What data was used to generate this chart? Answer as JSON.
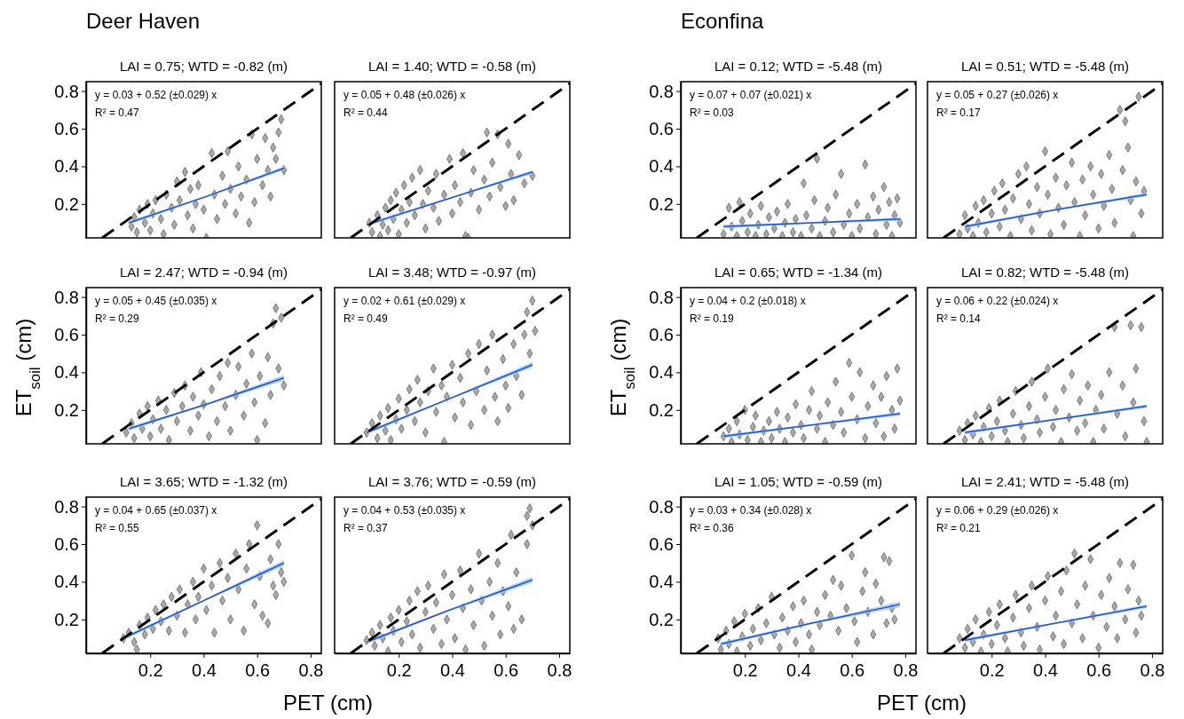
{
  "chart_data": [
    {
      "type": "scatter",
      "title": "LAI = 0.75; WTD = -0.82 (m)",
      "annotations": [
        "y = 0.03 + 0.52 (±0.029) x",
        "R² = 0.47",
        "Deer Haven"
      ],
      "xlim": [
        -0.04,
        0.84
      ],
      "ylim": [
        0.02,
        0.85
      ],
      "yticks": [
        0.2,
        0.4,
        0.6,
        0.8
      ],
      "tick_labels": "y",
      "series": [
        {
          "type": "scatter",
          "color": "#a9a9a9",
          "marker": "diamond",
          "x": [
            0.13,
            0.14,
            0.15,
            0.16,
            0.18,
            0.19,
            0.2,
            0.21,
            0.22,
            0.24,
            0.25,
            0.26,
            0.28,
            0.29,
            0.3,
            0.31,
            0.33,
            0.34,
            0.35,
            0.36,
            0.37,
            0.38,
            0.4,
            0.41,
            0.43,
            0.44,
            0.45,
            0.47,
            0.48,
            0.49,
            0.5,
            0.52,
            0.53,
            0.54,
            0.56,
            0.57,
            0.58,
            0.59,
            0.6,
            0.62,
            0.63,
            0.64,
            0.65,
            0.66,
            0.67,
            0.68,
            0.69,
            0.7
          ],
          "values": [
            0.08,
            0.13,
            0.05,
            0.17,
            0.1,
            0.2,
            0.06,
            0.15,
            0.22,
            0.12,
            0.04,
            0.25,
            0.18,
            0.09,
            0.32,
            0.22,
            0.37,
            0.14,
            0.28,
            0.07,
            0.2,
            0.3,
            0.17,
            0.02,
            0.47,
            0.25,
            0.12,
            0.35,
            0.2,
            0.48,
            0.28,
            0.15,
            0.4,
            0.24,
            0.33,
            0.1,
            0.57,
            0.21,
            0.44,
            0.3,
            0.55,
            0.38,
            0.24,
            0.5,
            0.44,
            0.58,
            0.65,
            0.38
          ]
        },
        {
          "type": "line",
          "color": "#1f4fd8",
          "x": [
            0.12,
            0.41,
            0.7
          ],
          "values": [
            0.1,
            0.24,
            0.39
          ],
          "lower": [
            0.09,
            0.236,
            0.38
          ],
          "upper": [
            0.11,
            0.244,
            0.4
          ]
        },
        {
          "type": "line",
          "color": "#000000",
          "line_style": "dashed",
          "x": [
            0.02,
            0.84
          ],
          "values": [
            0.02,
            0.84
          ]
        }
      ]
    },
    {
      "type": "scatter",
      "title": "LAI = 1.40; WTD = -0.58 (m)",
      "annotations": [
        "y = 0.05 + 0.48 (±0.026) x",
        "R² = 0.44"
      ],
      "xlim": [
        -0.04,
        0.84
      ],
      "ylim": [
        0.02,
        0.85
      ],
      "tick_labels": false,
      "series": [
        {
          "type": "scatter",
          "color": "#a9a9a9",
          "marker": "diamond",
          "x": [
            0.09,
            0.1,
            0.12,
            0.13,
            0.14,
            0.15,
            0.16,
            0.17,
            0.18,
            0.19,
            0.2,
            0.21,
            0.22,
            0.23,
            0.24,
            0.25,
            0.26,
            0.28,
            0.29,
            0.3,
            0.31,
            0.33,
            0.34,
            0.35,
            0.37,
            0.39,
            0.4,
            0.41,
            0.43,
            0.44,
            0.45,
            0.46,
            0.47,
            0.48,
            0.5,
            0.52,
            0.53,
            0.54,
            0.55,
            0.57,
            0.58,
            0.6,
            0.61,
            0.62,
            0.63,
            0.65,
            0.67,
            0.7
          ],
          "values": [
            0.1,
            0.05,
            0.14,
            0.03,
            0.09,
            0.18,
            0.06,
            0.22,
            0.12,
            0.26,
            0.04,
            0.17,
            0.3,
            0.1,
            0.21,
            0.34,
            0.14,
            0.38,
            0.2,
            0.07,
            0.27,
            0.18,
            0.36,
            0.11,
            0.25,
            0.44,
            0.15,
            0.3,
            0.21,
            0.47,
            0.03,
            0.02,
            0.26,
            0.38,
            0.17,
            0.33,
            0.58,
            0.24,
            0.42,
            0.57,
            0.29,
            0.19,
            0.52,
            0.36,
            0.22,
            0.46,
            0.31,
            0.35
          ]
        },
        {
          "type": "line",
          "color": "#1f4fd8",
          "x": [
            0.08,
            0.39,
            0.7
          ],
          "values": [
            0.09,
            0.23,
            0.37
          ],
          "lower": [
            0.08,
            0.226,
            0.36
          ],
          "upper": [
            0.1,
            0.234,
            0.38
          ]
        },
        {
          "type": "line",
          "color": "#000000",
          "line_style": "dashed",
          "x": [
            0.02,
            0.84
          ],
          "values": [
            0.02,
            0.84
          ]
        }
      ]
    },
    {
      "type": "scatter",
      "title": "LAI = 0.12; WTD = -5.48 (m)",
      "annotations": [
        "y = 0.07 + 0.07 (±0.021) x",
        "R² = 0.03",
        "Econfina"
      ],
      "xlim": [
        -0.04,
        0.84
      ],
      "ylim": [
        0.02,
        0.85
      ],
      "yticks": [
        0.2,
        0.4,
        0.6,
        0.8
      ],
      "tick_labels": "y",
      "series": [
        {
          "type": "scatter",
          "color": "#a9a9a9",
          "marker": "diamond",
          "x": [
            0.12,
            0.14,
            0.15,
            0.17,
            0.18,
            0.19,
            0.21,
            0.22,
            0.24,
            0.25,
            0.26,
            0.28,
            0.29,
            0.31,
            0.32,
            0.34,
            0.35,
            0.36,
            0.38,
            0.39,
            0.41,
            0.42,
            0.43,
            0.45,
            0.46,
            0.47,
            0.48,
            0.5,
            0.51,
            0.53,
            0.54,
            0.56,
            0.57,
            0.59,
            0.6,
            0.62,
            0.63,
            0.65,
            0.66,
            0.68,
            0.69,
            0.7,
            0.72,
            0.73,
            0.74,
            0.75,
            0.76,
            0.77,
            0.78
          ],
          "values": [
            0.04,
            0.18,
            0.08,
            0.03,
            0.21,
            0.11,
            0.05,
            0.15,
            0.03,
            0.09,
            0.19,
            0.04,
            0.13,
            0.07,
            0.16,
            0.03,
            0.1,
            0.2,
            0.05,
            0.12,
            0.03,
            0.31,
            0.14,
            0.07,
            0.22,
            0.44,
            0.03,
            0.11,
            0.18,
            0.05,
            0.25,
            0.36,
            0.09,
            0.15,
            0.03,
            0.2,
            0.07,
            0.41,
            0.13,
            0.24,
            0.04,
            0.17,
            0.29,
            0.09,
            0.21,
            0.03,
            0.14,
            0.23,
            0.1
          ]
        },
        {
          "type": "line",
          "color": "#1f4fd8",
          "x": [
            0.12,
            0.45,
            0.78
          ],
          "values": [
            0.08,
            0.1,
            0.12
          ],
          "lower": [
            0.07,
            0.096,
            0.11
          ],
          "upper": [
            0.09,
            0.104,
            0.13
          ]
        },
        {
          "type": "line",
          "color": "#000000",
          "line_style": "dashed",
          "x": [
            0.02,
            0.84
          ],
          "values": [
            0.02,
            0.84
          ]
        }
      ]
    },
    {
      "type": "scatter",
      "title": "LAI = 0.51; WTD = -5.48 (m)",
      "annotations": [
        "y = 0.05 + 0.27 (±0.026) x",
        "R² = 0.17"
      ],
      "xlim": [
        -0.04,
        0.84
      ],
      "ylim": [
        0.02,
        0.85
      ],
      "tick_labels": false,
      "series": [
        {
          "type": "scatter",
          "color": "#a9a9a9",
          "marker": "diamond",
          "x": [
            0.08,
            0.1,
            0.11,
            0.13,
            0.14,
            0.15,
            0.17,
            0.18,
            0.2,
            0.21,
            0.23,
            0.24,
            0.25,
            0.27,
            0.28,
            0.3,
            0.31,
            0.33,
            0.34,
            0.35,
            0.37,
            0.38,
            0.4,
            0.41,
            0.42,
            0.44,
            0.45,
            0.47,
            0.48,
            0.5,
            0.51,
            0.53,
            0.54,
            0.55,
            0.57,
            0.58,
            0.6,
            0.61,
            0.62,
            0.64,
            0.65,
            0.66,
            0.68,
            0.69,
            0.7,
            0.71,
            0.72,
            0.73,
            0.74,
            0.75,
            0.76,
            0.77
          ],
          "values": [
            0.04,
            0.14,
            0.07,
            0.03,
            0.19,
            0.1,
            0.22,
            0.05,
            0.15,
            0.27,
            0.08,
            0.31,
            0.17,
            0.03,
            0.23,
            0.36,
            0.12,
            0.4,
            0.2,
            0.06,
            0.29,
            0.15,
            0.48,
            0.25,
            0.04,
            0.34,
            0.18,
            0.09,
            0.3,
            0.42,
            0.21,
            0.03,
            0.33,
            0.14,
            0.4,
            0.25,
            0.07,
            0.36,
            0.19,
            0.46,
            0.28,
            0.1,
            0.7,
            0.38,
            0.64,
            0.5,
            0.22,
            0.03,
            0.32,
            0.77,
            0.15,
            0.27
          ]
        },
        {
          "type": "line",
          "color": "#1f4fd8",
          "x": [
            0.1,
            0.44,
            0.78
          ],
          "values": [
            0.08,
            0.17,
            0.25
          ],
          "lower": [
            0.07,
            0.166,
            0.24
          ],
          "upper": [
            0.09,
            0.174,
            0.26
          ]
        },
        {
          "type": "line",
          "color": "#000000",
          "line_style": "dashed",
          "x": [
            0.02,
            0.84
          ],
          "values": [
            0.02,
            0.84
          ]
        }
      ]
    },
    {
      "type": "scatter",
      "title": "LAI = 2.47; WTD = -0.94 (m)",
      "ylabel": "ET$_{soil}$ (cm)",
      "annotations": [
        "y = 0.05 + 0.45 (±0.035) x",
        "R² = 0.29"
      ],
      "xlim": [
        -0.04,
        0.84
      ],
      "ylim": [
        0.02,
        0.85
      ],
      "yticks": [
        0.2,
        0.4,
        0.6,
        0.8
      ],
      "tick_labels": "y",
      "series": [
        {
          "type": "scatter",
          "color": "#a9a9a9",
          "marker": "diamond",
          "x": [
            0.11,
            0.13,
            0.14,
            0.16,
            0.17,
            0.19,
            0.2,
            0.21,
            0.23,
            0.24,
            0.26,
            0.27,
            0.29,
            0.3,
            0.32,
            0.33,
            0.35,
            0.36,
            0.38,
            0.39,
            0.4,
            0.42,
            0.43,
            0.45,
            0.46,
            0.48,
            0.49,
            0.5,
            0.52,
            0.53,
            0.55,
            0.56,
            0.58,
            0.59,
            0.6,
            0.61,
            0.63,
            0.64,
            0.65,
            0.66,
            0.67,
            0.68,
            0.69,
            0.7
          ],
          "values": [
            0.08,
            0.13,
            0.05,
            0.18,
            0.1,
            0.22,
            0.06,
            0.15,
            0.25,
            0.1,
            0.2,
            0.04,
            0.29,
            0.14,
            0.22,
            0.33,
            0.09,
            0.27,
            0.17,
            0.4,
            0.23,
            0.06,
            0.31,
            0.14,
            0.38,
            0.22,
            0.45,
            0.09,
            0.28,
            0.43,
            0.17,
            0.34,
            0.5,
            0.24,
            0.04,
            0.38,
            0.13,
            0.48,
            0.28,
            0.66,
            0.74,
            0.42,
            0.69,
            0.33
          ]
        },
        {
          "type": "line",
          "color": "#1f4fd8",
          "x": [
            0.12,
            0.41,
            0.7
          ],
          "values": [
            0.1,
            0.23,
            0.37
          ],
          "lower": [
            0.09,
            0.225,
            0.355
          ],
          "upper": [
            0.11,
            0.235,
            0.385
          ]
        },
        {
          "type": "line",
          "color": "#000000",
          "line_style": "dashed",
          "x": [
            0.02,
            0.84
          ],
          "values": [
            0.02,
            0.84
          ]
        }
      ]
    },
    {
      "type": "scatter",
      "title": "LAI = 3.48; WTD = -0.97 (m)",
      "annotations": [
        "y = 0.02 + 0.61 (±0.029) x",
        "R² = 0.49"
      ],
      "xlim": [
        -0.04,
        0.84
      ],
      "ylim": [
        0.02,
        0.85
      ],
      "tick_labels": false,
      "series": [
        {
          "type": "scatter",
          "color": "#a9a9a9",
          "marker": "diamond",
          "x": [
            0.08,
            0.1,
            0.12,
            0.13,
            0.15,
            0.16,
            0.17,
            0.19,
            0.2,
            0.21,
            0.23,
            0.24,
            0.26,
            0.27,
            0.28,
            0.3,
            0.31,
            0.33,
            0.34,
            0.36,
            0.37,
            0.38,
            0.4,
            0.41,
            0.43,
            0.44,
            0.46,
            0.47,
            0.49,
            0.5,
            0.52,
            0.53,
            0.55,
            0.56,
            0.57,
            0.59,
            0.6,
            0.61,
            0.63,
            0.64,
            0.66,
            0.67,
            0.68,
            0.69,
            0.7,
            0.71
          ],
          "values": [
            0.08,
            0.13,
            0.05,
            0.17,
            0.09,
            0.21,
            0.04,
            0.15,
            0.26,
            0.1,
            0.2,
            0.31,
            0.14,
            0.36,
            0.24,
            0.08,
            0.3,
            0.42,
            0.19,
            0.33,
            0.03,
            0.27,
            0.44,
            0.16,
            0.37,
            0.24,
            0.5,
            0.12,
            0.3,
            0.55,
            0.2,
            0.41,
            0.6,
            0.27,
            0.14,
            0.47,
            0.33,
            0.21,
            0.55,
            0.38,
            0.28,
            0.6,
            0.72,
            0.5,
            0.78,
            0.62
          ]
        },
        {
          "type": "line",
          "color": "#1f4fd8",
          "x": [
            0.08,
            0.39,
            0.7
          ],
          "values": [
            0.08,
            0.26,
            0.44
          ],
          "lower": [
            0.07,
            0.255,
            0.425
          ],
          "upper": [
            0.09,
            0.265,
            0.455
          ]
        },
        {
          "type": "line",
          "color": "#000000",
          "line_style": "dashed",
          "x": [
            0.02,
            0.84
          ],
          "values": [
            0.02,
            0.84
          ]
        }
      ]
    },
    {
      "type": "scatter",
      "title": "LAI = 0.65; WTD = -1.34 (m)",
      "ylabel": "ET$_{soil}$ (cm)",
      "annotations": [
        "y = 0.04 + 0.2 (±0.018) x",
        "R² = 0.19"
      ],
      "xlim": [
        -0.04,
        0.84
      ],
      "ylim": [
        0.02,
        0.85
      ],
      "yticks": [
        0.2,
        0.4,
        0.6,
        0.8
      ],
      "tick_labels": "y",
      "series": [
        {
          "type": "scatter",
          "color": "#a9a9a9",
          "marker": "diamond",
          "x": [
            0.12,
            0.14,
            0.15,
            0.17,
            0.18,
            0.2,
            0.21,
            0.23,
            0.24,
            0.26,
            0.27,
            0.29,
            0.3,
            0.32,
            0.33,
            0.35,
            0.36,
            0.38,
            0.39,
            0.41,
            0.42,
            0.44,
            0.45,
            0.47,
            0.48,
            0.5,
            0.51,
            0.53,
            0.54,
            0.56,
            0.57,
            0.59,
            0.6,
            0.62,
            0.63,
            0.65,
            0.66,
            0.68,
            0.69,
            0.71,
            0.72,
            0.73,
            0.75,
            0.76,
            0.77,
            0.78
          ],
          "values": [
            0.06,
            0.1,
            0.03,
            0.14,
            0.07,
            0.2,
            0.04,
            0.11,
            0.17,
            0.03,
            0.09,
            0.14,
            0.05,
            0.19,
            0.1,
            0.03,
            0.16,
            0.08,
            0.23,
            0.12,
            0.05,
            0.2,
            0.3,
            0.1,
            0.17,
            0.03,
            0.24,
            0.12,
            0.35,
            0.19,
            0.08,
            0.45,
            0.27,
            0.15,
            0.4,
            0.05,
            0.22,
            0.33,
            0.13,
            0.27,
            0.06,
            0.38,
            0.2,
            0.1,
            0.42,
            0.25
          ]
        },
        {
          "type": "line",
          "color": "#1f4fd8",
          "x": [
            0.12,
            0.45,
            0.78
          ],
          "values": [
            0.06,
            0.12,
            0.18
          ],
          "lower": [
            0.05,
            0.116,
            0.17
          ],
          "upper": [
            0.07,
            0.124,
            0.19
          ]
        },
        {
          "type": "line",
          "color": "#000000",
          "line_style": "dashed",
          "x": [
            0.02,
            0.84
          ],
          "values": [
            0.02,
            0.84
          ]
        }
      ]
    },
    {
      "type": "scatter",
      "title": "LAI = 0.82; WTD = -5.48 (m)",
      "annotations": [
        "y = 0.06 + 0.22 (±0.024) x",
        "R² = 0.14"
      ],
      "xlim": [
        -0.04,
        0.84
      ],
      "ylim": [
        0.02,
        0.85
      ],
      "tick_labels": false,
      "series": [
        {
          "type": "scatter",
          "color": "#a9a9a9",
          "marker": "diamond",
          "x": [
            0.08,
            0.1,
            0.11,
            0.13,
            0.14,
            0.16,
            0.17,
            0.19,
            0.2,
            0.22,
            0.23,
            0.25,
            0.26,
            0.28,
            0.29,
            0.31,
            0.32,
            0.34,
            0.35,
            0.37,
            0.38,
            0.4,
            0.41,
            0.43,
            0.44,
            0.46,
            0.47,
            0.49,
            0.5,
            0.52,
            0.53,
            0.55,
            0.56,
            0.58,
            0.59,
            0.61,
            0.62,
            0.64,
            0.66,
            0.67,
            0.69,
            0.7,
            0.72,
            0.73,
            0.74,
            0.76,
            0.77,
            0.78
          ],
          "values": [
            0.09,
            0.04,
            0.13,
            0.07,
            0.17,
            0.03,
            0.11,
            0.21,
            0.06,
            0.14,
            0.25,
            0.09,
            0.03,
            0.18,
            0.3,
            0.12,
            0.05,
            0.22,
            0.35,
            0.15,
            0.08,
            0.27,
            0.42,
            0.11,
            0.2,
            0.03,
            0.31,
            0.16,
            0.39,
            0.09,
            0.25,
            0.13,
            0.33,
            0.03,
            0.2,
            0.28,
            0.1,
            0.4,
            0.64,
            0.18,
            0.33,
            0.06,
            0.65,
            0.24,
            0.42,
            0.64,
            0.14,
            0.03
          ]
        },
        {
          "type": "line",
          "color": "#1f4fd8",
          "x": [
            0.1,
            0.44,
            0.78
          ],
          "values": [
            0.08,
            0.15,
            0.22
          ],
          "lower": [
            0.07,
            0.146,
            0.21
          ],
          "upper": [
            0.09,
            0.154,
            0.23
          ]
        },
        {
          "type": "line",
          "color": "#000000",
          "line_style": "dashed",
          "x": [
            0.02,
            0.84
          ],
          "values": [
            0.02,
            0.84
          ]
        }
      ]
    },
    {
      "type": "scatter",
      "title": "LAI = 3.65; WTD = -1.32 (m)",
      "xlabel": "PET (cm)",
      "annotations": [
        "y = 0.04 + 0.65 (±0.037) x",
        "R² = 0.55"
      ],
      "xlim": [
        -0.04,
        0.84
      ],
      "ylim": [
        0.02,
        0.85
      ],
      "xticks": [
        0.2,
        0.4,
        0.6,
        0.8
      ],
      "yticks": [
        0.2,
        0.4,
        0.6,
        0.8
      ],
      "series": [
        {
          "type": "scatter",
          "color": "#a9a9a9",
          "marker": "diamond",
          "x": [
            0.1,
            0.12,
            0.14,
            0.15,
            0.16,
            0.18,
            0.19,
            0.21,
            0.22,
            0.24,
            0.25,
            0.27,
            0.28,
            0.3,
            0.31,
            0.33,
            0.34,
            0.36,
            0.37,
            0.38,
            0.4,
            0.41,
            0.43,
            0.44,
            0.46,
            0.47,
            0.49,
            0.5,
            0.52,
            0.53,
            0.55,
            0.56,
            0.57,
            0.59,
            0.6,
            0.61,
            0.62,
            0.64,
            0.65,
            0.66,
            0.67,
            0.68,
            0.69,
            0.7
          ],
          "values": [
            0.1,
            0.13,
            0.08,
            0.04,
            0.17,
            0.12,
            0.21,
            0.15,
            0.25,
            0.19,
            0.28,
            0.14,
            0.32,
            0.22,
            0.36,
            0.13,
            0.28,
            0.4,
            0.2,
            0.32,
            0.47,
            0.25,
            0.38,
            0.13,
            0.5,
            0.3,
            0.42,
            0.2,
            0.55,
            0.36,
            0.14,
            0.47,
            0.6,
            0.28,
            0.7,
            0.43,
            0.22,
            0.18,
            0.52,
            0.38,
            0.33,
            0.6,
            0.45,
            0.4
          ]
        },
        {
          "type": "line",
          "color": "#1f4fd8",
          "x": [
            0.1,
            0.4,
            0.7
          ],
          "values": [
            0.1,
            0.3,
            0.5
          ],
          "lower": [
            0.09,
            0.295,
            0.485
          ],
          "upper": [
            0.11,
            0.305,
            0.515
          ]
        },
        {
          "type": "line",
          "color": "#000000",
          "line_style": "dashed",
          "x": [
            0.02,
            0.84
          ],
          "values": [
            0.02,
            0.84
          ]
        }
      ]
    },
    {
      "type": "scatter",
      "title": "LAI = 3.76; WTD = -0.59 (m)",
      "annotations": [
        "y = 0.04 + 0.53 (±0.035) x",
        "R² = 0.37"
      ],
      "xlim": [
        -0.04,
        0.84
      ],
      "ylim": [
        0.02,
        0.85
      ],
      "xticks": [
        0.2,
        0.4,
        0.6,
        0.8
      ],
      "tick_labels": "x",
      "series": [
        {
          "type": "scatter",
          "color": "#a9a9a9",
          "marker": "diamond",
          "x": [
            0.08,
            0.1,
            0.11,
            0.13,
            0.14,
            0.16,
            0.17,
            0.18,
            0.2,
            0.21,
            0.23,
            0.24,
            0.25,
            0.27,
            0.28,
            0.3,
            0.31,
            0.33,
            0.34,
            0.36,
            0.37,
            0.38,
            0.4,
            0.41,
            0.43,
            0.44,
            0.45,
            0.47,
            0.48,
            0.5,
            0.51,
            0.52,
            0.54,
            0.55,
            0.57,
            0.58,
            0.59,
            0.61,
            0.62,
            0.63,
            0.64,
            0.66,
            0.68,
            0.68,
            0.69,
            0.7
          ],
          "values": [
            0.09,
            0.13,
            0.06,
            0.17,
            0.1,
            0.03,
            0.21,
            0.14,
            0.25,
            0.08,
            0.19,
            0.3,
            0.12,
            0.35,
            0.05,
            0.24,
            0.38,
            0.15,
            0.29,
            0.07,
            0.44,
            0.2,
            0.33,
            0.1,
            0.46,
            0.26,
            0.04,
            0.36,
            0.17,
            0.55,
            0.3,
            0.06,
            0.4,
            0.22,
            0.5,
            0.12,
            0.35,
            0.27,
            0.65,
            0.15,
            0.45,
            0.2,
            0.6,
            0.75,
            0.79,
            0.7
          ]
        },
        {
          "type": "line",
          "color": "#1f4fd8",
          "x": [
            0.08,
            0.39,
            0.7
          ],
          "values": [
            0.08,
            0.25,
            0.41
          ],
          "lower": [
            0.07,
            0.245,
            0.395
          ],
          "upper": [
            0.09,
            0.255,
            0.425
          ]
        },
        {
          "type": "line",
          "color": "#000000",
          "line_style": "dashed",
          "x": [
            0.02,
            0.84
          ],
          "values": [
            0.02,
            0.84
          ]
        }
      ]
    },
    {
      "type": "scatter",
      "title": "LAI = 1.05; WTD = -0.59 (m)",
      "xlabel": "PET (cm)",
      "annotations": [
        "y = 0.03 + 0.34 (±0.028) x",
        "R² = 0.36"
      ],
      "xlim": [
        -0.04,
        0.84
      ],
      "ylim": [
        0.02,
        0.85
      ],
      "xticks": [
        0.2,
        0.4,
        0.6,
        0.8
      ],
      "yticks": [
        0.2,
        0.4,
        0.6,
        0.8
      ],
      "series": [
        {
          "type": "scatter",
          "color": "#a9a9a9",
          "marker": "diamond",
          "x": [
            0.1,
            0.11,
            0.13,
            0.14,
            0.16,
            0.17,
            0.19,
            0.2,
            0.22,
            0.23,
            0.25,
            0.26,
            0.28,
            0.3,
            0.31,
            0.33,
            0.34,
            0.36,
            0.38,
            0.39,
            0.41,
            0.42,
            0.44,
            0.45,
            0.47,
            0.48,
            0.5,
            0.52,
            0.53,
            0.55,
            0.56,
            0.58,
            0.6,
            0.61,
            0.62,
            0.64,
            0.65,
            0.66,
            0.68,
            0.69,
            0.71,
            0.72,
            0.73,
            0.74,
            0.75,
            0.76
          ],
          "values": [
            0.1,
            0.04,
            0.14,
            0.07,
            0.19,
            0.03,
            0.11,
            0.23,
            0.06,
            0.15,
            0.26,
            0.09,
            0.18,
            0.32,
            0.12,
            0.05,
            0.21,
            0.14,
            0.27,
            0.08,
            0.18,
            0.3,
            0.12,
            0.04,
            0.24,
            0.17,
            0.33,
            0.22,
            0.41,
            0.14,
            0.38,
            0.26,
            0.54,
            0.19,
            0.08,
            0.35,
            0.45,
            0.24,
            0.12,
            0.39,
            0.3,
            0.53,
            0.18,
            0.51,
            0.26,
            0.2
          ]
        },
        {
          "type": "line",
          "color": "#1f4fd8",
          "x": [
            0.11,
            0.45,
            0.78
          ],
          "values": [
            0.07,
            0.18,
            0.28
          ],
          "lower": [
            0.06,
            0.175,
            0.265
          ],
          "upper": [
            0.08,
            0.185,
            0.295
          ]
        },
        {
          "type": "line",
          "color": "#000000",
          "line_style": "dashed",
          "x": [
            0.02,
            0.84
          ],
          "values": [
            0.02,
            0.84
          ]
        }
      ]
    },
    {
      "type": "scatter",
      "title": "LAI = 2.41; WTD = -5.48 (m)",
      "annotations": [
        "y = 0.06 + 0.29 (±0.026) x",
        "R² = 0.21"
      ],
      "xlim": [
        -0.04,
        0.84
      ],
      "ylim": [
        0.02,
        0.85
      ],
      "xticks": [
        0.2,
        0.4,
        0.6,
        0.8
      ],
      "tick_labels": "x",
      "series": [
        {
          "type": "scatter",
          "color": "#a9a9a9",
          "marker": "diamond",
          "x": [
            0.08,
            0.1,
            0.11,
            0.13,
            0.14,
            0.16,
            0.17,
            0.19,
            0.2,
            0.22,
            0.23,
            0.25,
            0.26,
            0.28,
            0.29,
            0.31,
            0.32,
            0.34,
            0.35,
            0.37,
            0.38,
            0.4,
            0.41,
            0.43,
            0.44,
            0.46,
            0.47,
            0.48,
            0.5,
            0.51,
            0.52,
            0.54,
            0.55,
            0.57,
            0.58,
            0.6,
            0.61,
            0.63,
            0.64,
            0.66,
            0.67,
            0.68,
            0.7,
            0.71,
            0.73,
            0.74,
            0.75,
            0.76
          ],
          "values": [
            0.1,
            0.05,
            0.15,
            0.08,
            0.2,
            0.03,
            0.12,
            0.24,
            0.07,
            0.17,
            0.28,
            0.1,
            0.03,
            0.21,
            0.33,
            0.13,
            0.06,
            0.26,
            0.38,
            0.16,
            0.04,
            0.3,
            0.43,
            0.11,
            0.22,
            0.35,
            0.07,
            0.46,
            0.18,
            0.55,
            0.28,
            0.1,
            0.38,
            0.52,
            0.22,
            0.05,
            0.33,
            0.16,
            0.42,
            0.27,
            0.1,
            0.5,
            0.2,
            0.36,
            0.49,
            0.13,
            0.3,
            0.22
          ]
        },
        {
          "type": "line",
          "color": "#1f4fd8",
          "x": [
            0.1,
            0.44,
            0.78
          ],
          "values": [
            0.09,
            0.18,
            0.27
          ],
          "lower": [
            0.08,
            0.176,
            0.26
          ],
          "upper": [
            0.1,
            0.184,
            0.28
          ]
        },
        {
          "type": "line",
          "color": "#000000",
          "line_style": "dashed",
          "x": [
            0.02,
            0.84
          ],
          "values": [
            0.02,
            0.84
          ]
        }
      ]
    }
  ]
}
